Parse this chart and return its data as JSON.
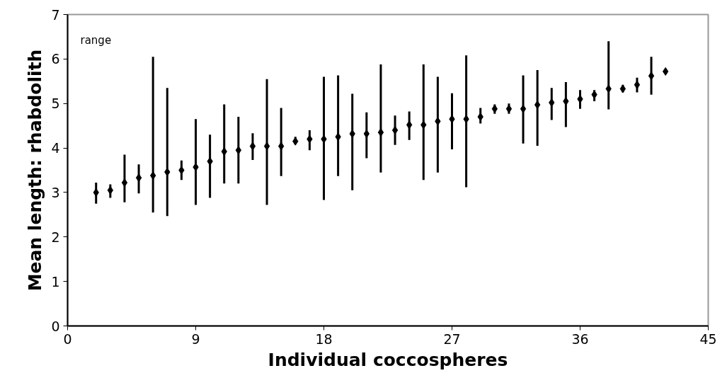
{
  "chart_data": {
    "type": "scatter",
    "xlabel": "Individual coccospheres",
    "ylabel": "Mean length: rhabdolith",
    "annotations": [
      "range"
    ],
    "x": [
      2,
      3,
      4,
      5,
      6,
      7,
      8,
      9,
      10,
      11,
      12,
      13,
      14,
      15,
      16,
      17,
      18,
      19,
      20,
      21,
      22,
      23,
      24,
      25,
      26,
      27,
      28,
      29,
      30,
      31,
      32,
      33,
      34,
      35,
      36,
      37,
      38,
      39,
      40,
      41,
      42
    ],
    "values": [
      3.0,
      3.05,
      3.22,
      3.33,
      3.38,
      3.46,
      3.5,
      3.57,
      3.7,
      3.92,
      3.95,
      4.04,
      4.04,
      4.04,
      4.15,
      4.2,
      4.2,
      4.25,
      4.32,
      4.32,
      4.35,
      4.4,
      4.52,
      4.52,
      4.6,
      4.65,
      4.65,
      4.7,
      4.88,
      4.88,
      4.88,
      4.97,
      5.02,
      5.05,
      5.1,
      5.2,
      5.33,
      5.33,
      5.42,
      5.62,
      5.72
    ],
    "errors": [
      [
        2.75,
        3.22
      ],
      [
        2.88,
        3.18
      ],
      [
        2.78,
        3.85
      ],
      [
        2.98,
        3.63
      ],
      [
        2.55,
        6.05
      ],
      [
        2.47,
        5.35
      ],
      [
        3.28,
        3.72
      ],
      [
        2.72,
        4.65
      ],
      [
        2.88,
        4.3
      ],
      [
        3.2,
        4.98
      ],
      [
        3.2,
        4.7
      ],
      [
        3.73,
        4.33
      ],
      [
        2.72,
        5.55
      ],
      [
        3.37,
        4.9
      ],
      [
        4.08,
        4.25
      ],
      [
        3.95,
        4.4
      ],
      [
        2.83,
        5.6
      ],
      [
        3.37,
        5.63
      ],
      [
        3.05,
        5.22
      ],
      [
        3.77,
        4.8
      ],
      [
        3.45,
        5.88
      ],
      [
        4.07,
        4.73
      ],
      [
        4.18,
        4.82
      ],
      [
        3.28,
        5.88
      ],
      [
        3.45,
        5.6
      ],
      [
        3.97,
        5.23
      ],
      [
        3.12,
        6.08
      ],
      [
        4.55,
        4.9
      ],
      [
        4.77,
        4.98
      ],
      [
        4.77,
        5.0
      ],
      [
        4.1,
        5.63
      ],
      [
        4.05,
        5.75
      ],
      [
        4.63,
        5.35
      ],
      [
        4.47,
        5.48
      ],
      [
        4.88,
        5.3
      ],
      [
        5.05,
        5.3
      ],
      [
        4.87,
        6.4
      ],
      [
        5.25,
        5.42
      ],
      [
        5.25,
        5.58
      ],
      [
        5.2,
        6.05
      ],
      null
    ],
    "color": "#000000",
    "marker": "diamond",
    "xlim": [
      0,
      45
    ],
    "xticks": [
      0,
      9,
      18,
      27,
      36,
      45
    ],
    "ylim": [
      0,
      7
    ],
    "yticks": [
      0,
      1,
      2,
      3,
      4,
      5,
      6,
      7
    ],
    "grid": false
  }
}
